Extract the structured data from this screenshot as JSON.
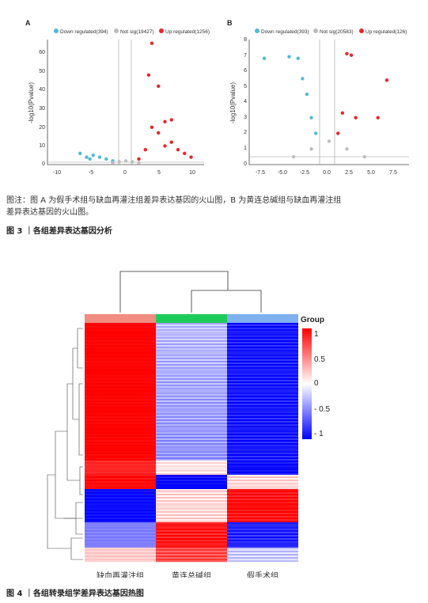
{
  "figure3": {
    "panelA": {
      "label": "A",
      "legend": [
        {
          "name": "Down regulated(394)",
          "color": "#52b9d2"
        },
        {
          "name": "Not sig(19427)",
          "color": "#bdbdbd"
        },
        {
          "name": "Up regulated(1256)",
          "color": "#e8262b"
        }
      ],
      "ylabel": "-log10(Pvalue)",
      "xticks": [
        "-10",
        "-5",
        "0",
        "5",
        "10"
      ],
      "yticks": [
        "0",
        "10",
        "20",
        "30",
        "40",
        "50",
        "60"
      ]
    },
    "panelB": {
      "label": "B",
      "legend": [
        {
          "name": "Down regulated(393)",
          "color": "#52b9d2"
        },
        {
          "name": "Not sig(20583)",
          "color": "#bdbdbd"
        },
        {
          "name": "Up regulated(126)",
          "color": "#e8262b"
        }
      ],
      "ylabel": "-log10(Pvalue)",
      "xticks": [
        "-7.5",
        "-5.0",
        "-2.5",
        "0.0",
        "2.5",
        "5.0",
        "7.5"
      ],
      "yticks": [
        "0",
        "1",
        "2",
        "3",
        "4",
        "5",
        "6",
        "7",
        "8"
      ]
    },
    "caption_line1": "图注：图 A 为假手术组与缺血再灌注组差异表达基因的火山图，B 为黄连总碱组与缺血再灌注组",
    "caption_line2": "差异表达基因的火山图。",
    "title": "图 3 ｜各组差异表达基因分析"
  },
  "figure4": {
    "group_legend_title": "Group",
    "group_colors": [
      "#f08c80",
      "#1ecb5a",
      "#7fb1f0"
    ],
    "scale_ticks": [
      "1",
      "0.5",
      "0",
      "- 0.5",
      "- 1"
    ],
    "columns": [
      "缺血再灌注组",
      "黄连总碱组",
      "假手术组"
    ],
    "title": "图 4 ｜各组转录组学差异表达基因热图"
  },
  "chart_data": [
    {
      "type": "scatter",
      "panel": "A",
      "ylabel": "-log10(Pvalue)",
      "xlim": [
        -12,
        12
      ],
      "ylim": [
        0,
        67
      ],
      "series": [
        {
          "name": "Down regulated(394)",
          "x": [
            -7,
            -6,
            -5.5,
            -5,
            -4,
            -3,
            -2
          ],
          "y": [
            6,
            4,
            3,
            5,
            4,
            3,
            2
          ]
        },
        {
          "name": "Not sig(19427)",
          "x": [
            -2,
            -1,
            0,
            1,
            2
          ],
          "y": [
            1,
            1.5,
            2,
            1.5,
            1
          ]
        },
        {
          "name": "Up regulated(1256)",
          "x": [
            2,
            3,
            4,
            5,
            6,
            7,
            8,
            9,
            10,
            3.5,
            4,
            5,
            6,
            7
          ],
          "y": [
            3,
            8,
            20,
            17,
            10,
            12,
            8,
            6,
            4,
            48,
            65,
            42,
            23,
            24
          ]
        }
      ]
    },
    {
      "type": "scatter",
      "panel": "B",
      "ylabel": "-log10(Pvalue)",
      "xlim": [
        -9,
        9
      ],
      "ylim": [
        0,
        8
      ],
      "series": [
        {
          "name": "Down regulated(393)",
          "x": [
            -7.3,
            -4.5,
            -3.5,
            -3,
            -2.5,
            -2,
            -1.5
          ],
          "y": [
            6.8,
            6.9,
            6.8,
            5.5,
            4.5,
            3,
            2
          ]
        },
        {
          "name": "Not sig(20583)",
          "x": [
            -4,
            -2,
            0,
            2,
            4
          ],
          "y": [
            0.5,
            1,
            1.5,
            1,
            0.5
          ]
        },
        {
          "name": "Up regulated(126)",
          "x": [
            1,
            2,
            2.5,
            3,
            6.5,
            5.5,
            1.5
          ],
          "y": [
            2,
            7.1,
            7,
            3,
            5.4,
            3,
            3.3
          ]
        }
      ]
    }
  ]
}
